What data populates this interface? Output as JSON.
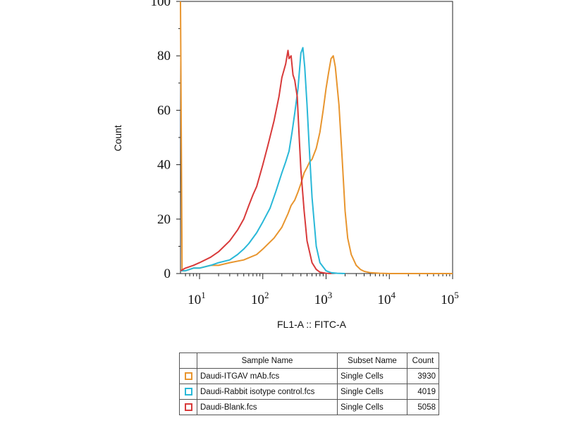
{
  "chart_data": {
    "type": "line",
    "title": "",
    "xlabel": "FL1-A :: FITC-A",
    "ylabel": "Count",
    "xscale": "log",
    "xlim": [
      5,
      100000
    ],
    "ylim": [
      0,
      100
    ],
    "yticks": [
      0,
      20,
      40,
      60,
      80,
      100
    ],
    "xticks": [
      {
        "value": 10,
        "base": "10",
        "exp": "1"
      },
      {
        "value": 100,
        "base": "10",
        "exp": "2"
      },
      {
        "value": 1000,
        "base": "10",
        "exp": "3"
      },
      {
        "value": 10000,
        "base": "10",
        "exp": "4"
      },
      {
        "value": 100000,
        "base": "10",
        "exp": "5"
      }
    ],
    "series": [
      {
        "name": "Daudi-ITGAV mAb.fcs",
        "color": "#e8952e",
        "x": [
          5,
          5.3,
          6,
          8,
          10,
          15,
          20,
          30,
          50,
          80,
          100,
          150,
          200,
          250,
          280,
          320,
          360,
          400,
          450,
          500,
          550,
          600,
          700,
          800,
          900,
          1000,
          1100,
          1200,
          1300,
          1400,
          1600,
          1800,
          2000,
          2200,
          2500,
          3000,
          3500,
          4000,
          5000,
          7000,
          10000,
          20000,
          50000,
          100000
        ],
        "y": [
          100,
          1,
          1,
          2,
          2,
          3,
          3,
          4,
          5,
          7,
          9,
          13,
          17,
          22,
          25,
          27,
          30,
          33,
          37,
          39,
          41,
          42,
          46,
          52,
          60,
          68,
          74,
          79,
          80,
          76,
          62,
          42,
          23,
          13,
          7,
          3,
          1.5,
          0.8,
          0.3,
          0.1,
          0,
          0,
          0,
          0
        ]
      },
      {
        "name": "Daudi-Rabbit isotype control.fcs",
        "color": "#29b8d8",
        "x": [
          5,
          6,
          8,
          10,
          15,
          20,
          30,
          40,
          50,
          60,
          80,
          100,
          130,
          160,
          200,
          230,
          260,
          290,
          320,
          360,
          400,
          430,
          460,
          500,
          540,
          600,
          700,
          800,
          1000,
          1200,
          1500,
          2000
        ],
        "y": [
          1,
          1,
          2,
          2,
          3,
          4,
          5,
          7,
          9,
          11,
          15,
          19,
          24,
          30,
          37,
          41,
          45,
          52,
          59,
          68,
          81,
          83,
          76,
          62,
          47,
          28,
          10,
          4,
          1,
          0.3,
          0.1,
          0
        ],
        "clip": true
      },
      {
        "name": "Daudi-Blank.fcs",
        "color": "#d83a3a",
        "x": [
          5,
          6,
          8,
          10,
          15,
          20,
          30,
          40,
          50,
          60,
          70,
          80,
          100,
          120,
          150,
          180,
          200,
          230,
          250,
          260,
          280,
          300,
          320,
          350,
          380,
          400,
          450,
          500,
          600,
          700,
          800,
          1000,
          1200
        ],
        "y": [
          1,
          2,
          3,
          4,
          6,
          8,
          12,
          16,
          20,
          25,
          29,
          32,
          40,
          47,
          56,
          65,
          72,
          77,
          82,
          79,
          80,
          73,
          71,
          65,
          48,
          38,
          23,
          12,
          4,
          1.5,
          0.5,
          0.1,
          0
        ],
        "clip": true
      }
    ]
  },
  "legend": {
    "headers": [
      "Sample Name",
      "Subset Name",
      "Count"
    ],
    "rows": [
      {
        "name": "Daudi-ITGAV mAb.fcs",
        "subset": "Single Cells",
        "count": "3930",
        "color": "#e8952e"
      },
      {
        "name": "Daudi-Rabbit isotype control.fcs",
        "subset": "Single Cells",
        "count": "4019",
        "color": "#29b8d8"
      },
      {
        "name": "Daudi-Blank.fcs",
        "subset": "Single Cells",
        "count": "5058",
        "color": "#d83a3a"
      }
    ]
  }
}
